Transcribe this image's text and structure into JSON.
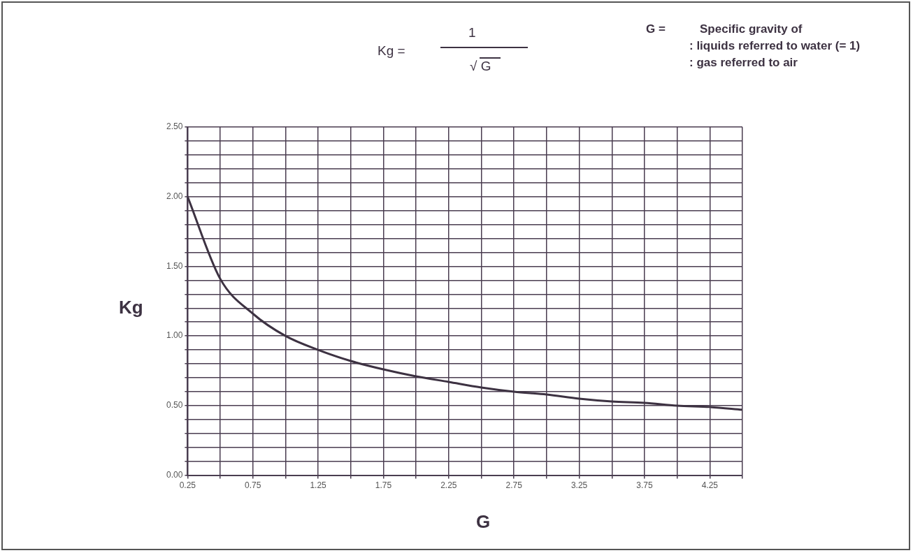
{
  "chart_data": {
    "type": "line",
    "xlabel": "G",
    "ylabel": "Kg",
    "annotations": [
      "Kg =",
      "1",
      "√ G",
      "G =",
      "Specific gravity of",
      ": liquids referred to water (= 1)",
      ": gas referred to air"
    ],
    "x": [
      0.25,
      0.5,
      0.75,
      1.0,
      1.25,
      1.5,
      1.75,
      2.0,
      2.25,
      2.5,
      2.75,
      3.0,
      3.25,
      3.5,
      3.75,
      4.0,
      4.25,
      4.5
    ],
    "series": [
      {
        "color": "#3d3242",
        "values": [
          2.0,
          1.41,
          1.16,
          1.0,
          0.9,
          0.82,
          0.76,
          0.71,
          0.67,
          0.63,
          0.6,
          0.58,
          0.55,
          0.53,
          0.52,
          0.5,
          0.49,
          0.47
        ]
      }
    ],
    "xlim": [
      0.25,
      4.5
    ],
    "xticks": [
      {
        "value": 0.25,
        "label": "0.25"
      },
      {
        "value": 0.5,
        "label": null
      },
      {
        "value": 0.75,
        "label": "0.75"
      },
      {
        "value": 1.0,
        "label": null
      },
      {
        "value": 1.25,
        "label": "1.25"
      },
      {
        "value": 1.5,
        "label": null
      },
      {
        "value": 1.75,
        "label": "1.75"
      },
      {
        "value": 2.0,
        "label": null
      },
      {
        "value": 2.25,
        "label": "2.25"
      },
      {
        "value": 2.5,
        "label": null
      },
      {
        "value": 2.75,
        "label": "2.75"
      },
      {
        "value": 3.0,
        "label": null
      },
      {
        "value": 3.25,
        "label": "3.25"
      },
      {
        "value": 3.5,
        "label": null
      },
      {
        "value": 3.75,
        "label": "3.75"
      },
      {
        "value": 4.0,
        "label": null
      },
      {
        "value": 4.25,
        "label": "4.25"
      },
      {
        "value": 4.5,
        "label": null
      }
    ],
    "ylim": [
      0,
      2.5
    ],
    "yticks": [
      {
        "value": 0,
        "label": "0.00"
      },
      {
        "value": 0.1,
        "label": null
      },
      {
        "value": 0.2,
        "label": null
      },
      {
        "value": 0.3,
        "label": null
      },
      {
        "value": 0.4,
        "label": null
      },
      {
        "value": 0.5,
        "label": "0.50"
      },
      {
        "value": 0.6,
        "label": null
      },
      {
        "value": 0.7,
        "label": null
      },
      {
        "value": 0.8,
        "label": null
      },
      {
        "value": 0.9,
        "label": null
      },
      {
        "value": 1.0,
        "label": "1.00"
      },
      {
        "value": 1.1,
        "label": null
      },
      {
        "value": 1.2,
        "label": null
      },
      {
        "value": 1.3,
        "label": null
      },
      {
        "value": 1.4,
        "label": null
      },
      {
        "value": 1.5,
        "label": "1.50"
      },
      {
        "value": 1.6,
        "label": null
      },
      {
        "value": 1.7,
        "label": null
      },
      {
        "value": 1.8,
        "label": null
      },
      {
        "value": 1.9,
        "label": null
      },
      {
        "value": 2.0,
        "label": "2.00"
      },
      {
        "value": 2.1,
        "label": null
      },
      {
        "value": 2.2,
        "label": null
      },
      {
        "value": 2.3,
        "label": null
      },
      {
        "value": 2.4,
        "label": null
      },
      {
        "value": 2.5,
        "label": "2.50"
      }
    ],
    "grid": true,
    "legend": false,
    "marker": "none",
    "line_style": "solid"
  }
}
